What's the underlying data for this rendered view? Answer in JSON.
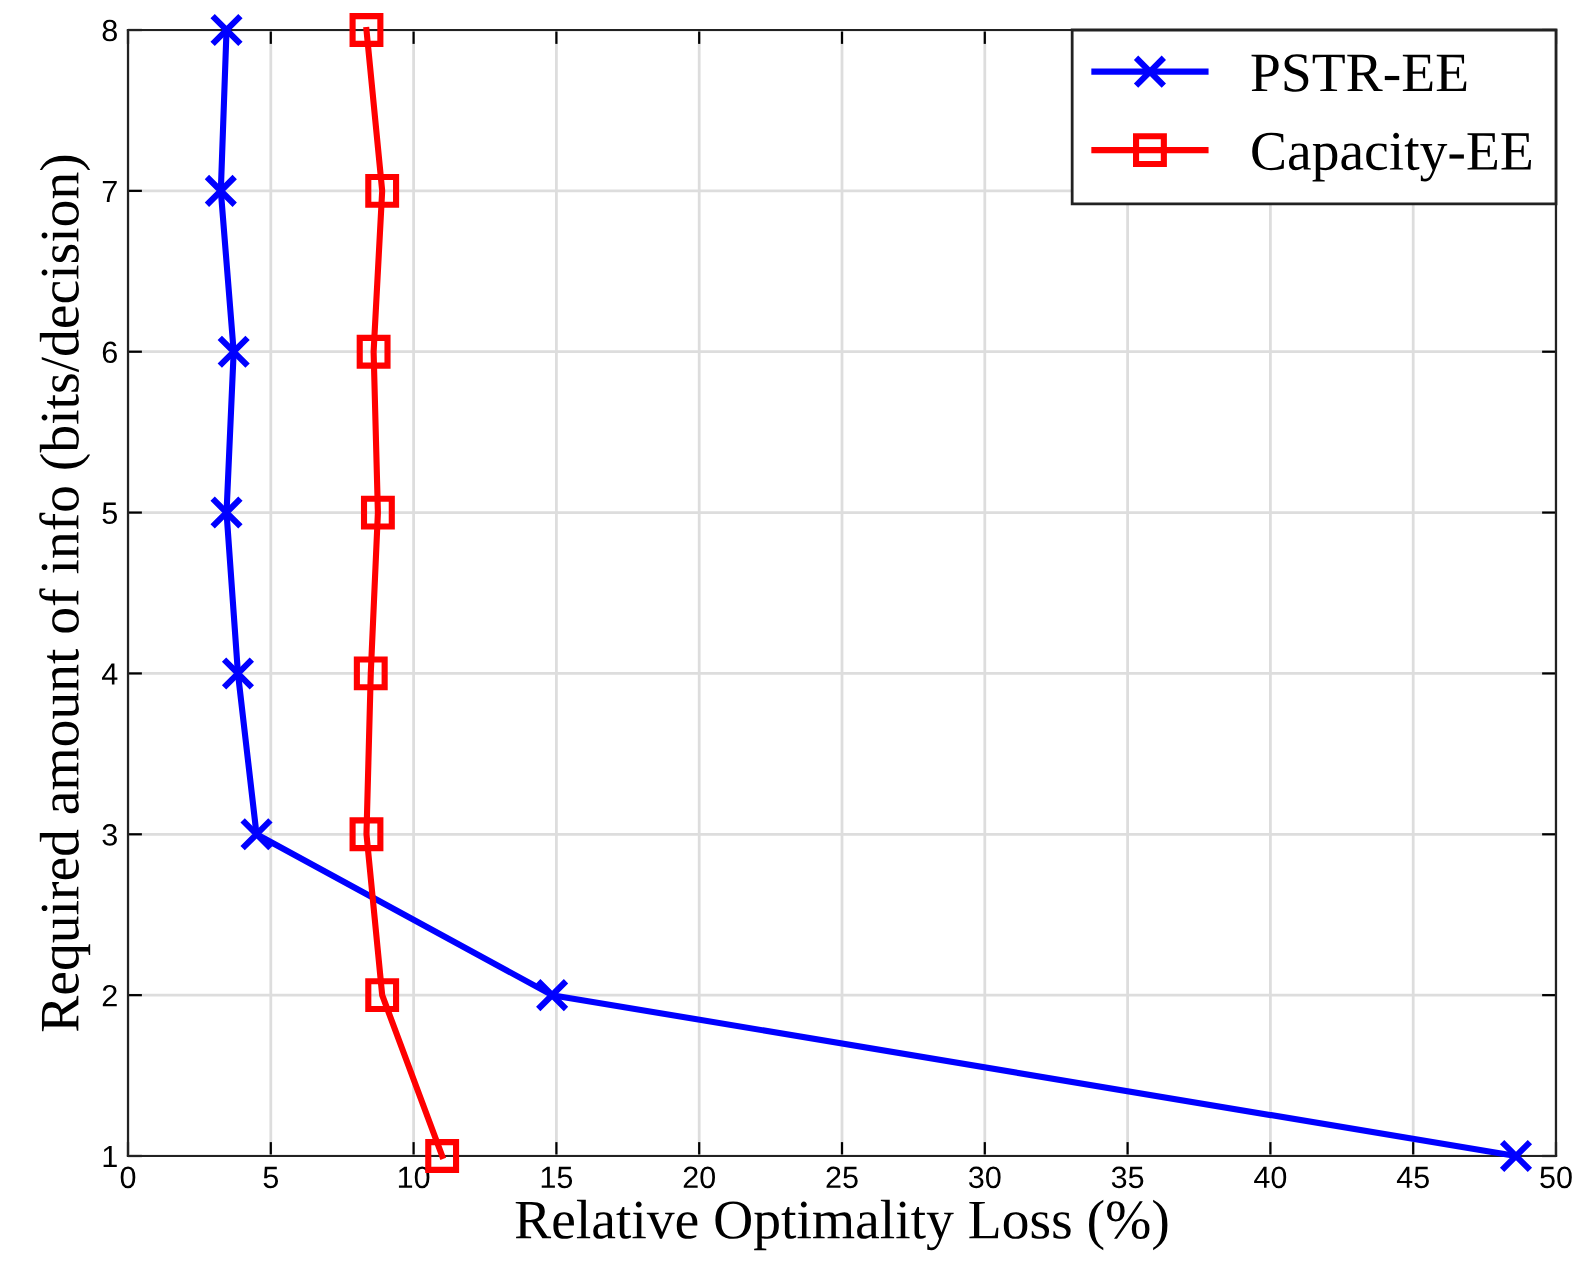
{
  "chart_data": {
    "type": "line",
    "xlabel": "Relative Optimality Loss (%)",
    "ylabel": "Required amount of info (bits/decision)",
    "xlim": [
      0,
      50
    ],
    "xticks": [
      0,
      5,
      10,
      15,
      20,
      25,
      30,
      35,
      40,
      45,
      50
    ],
    "ylim": [
      1,
      8
    ],
    "yticks": [
      1,
      2,
      3,
      4,
      5,
      6,
      7,
      8
    ],
    "grid": true,
    "legend": "top right",
    "series": [
      {
        "name": "PSTR-EE",
        "color": "#0000ff",
        "marker": "cross",
        "x": [
          48.6,
          14.85,
          4.5,
          3.85,
          3.45,
          3.7,
          3.25,
          3.45
        ],
        "values": [
          1,
          2,
          3,
          4,
          5,
          6,
          7,
          8
        ]
      },
      {
        "name": "Capacity-EE",
        "color": "#ff0000",
        "marker": "square",
        "x": [
          11.0,
          8.9,
          8.35,
          8.5,
          8.75,
          8.6,
          8.9,
          8.35
        ],
        "values": [
          1,
          2,
          3,
          4,
          5,
          6,
          7,
          8
        ]
      }
    ]
  }
}
